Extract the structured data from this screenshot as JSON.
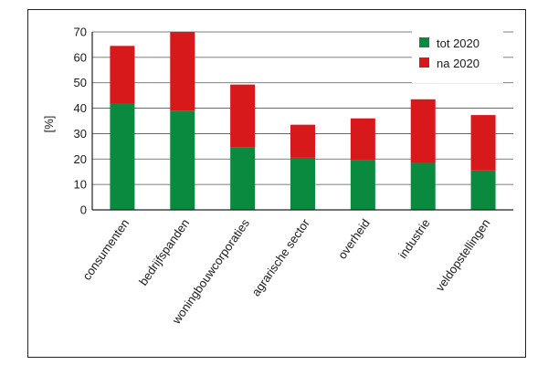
{
  "chart_data": {
    "type": "bar",
    "stacked": true,
    "title": "",
    "xlabel": "",
    "ylabel": "[%]",
    "ylim": [
      0,
      70
    ],
    "yticks": [
      0,
      10,
      20,
      30,
      40,
      50,
      60,
      70
    ],
    "grid": true,
    "legend_position": "top-right",
    "categories": [
      "consumenten",
      "bedrijfspanden",
      "woningbouwcorporaties",
      "agrarische sector",
      "overheid",
      "industrie",
      "veldopstellingen"
    ],
    "series": [
      {
        "name": "tot 2020",
        "color": "#0a8a3e",
        "values": [
          42,
          39,
          24.5,
          20.5,
          19.5,
          18.5,
          15.5
        ]
      },
      {
        "name": "na 2020",
        "color": "#d7191c",
        "values": [
          22.5,
          31,
          24.8,
          13,
          16.5,
          25,
          21.8
        ]
      }
    ]
  }
}
